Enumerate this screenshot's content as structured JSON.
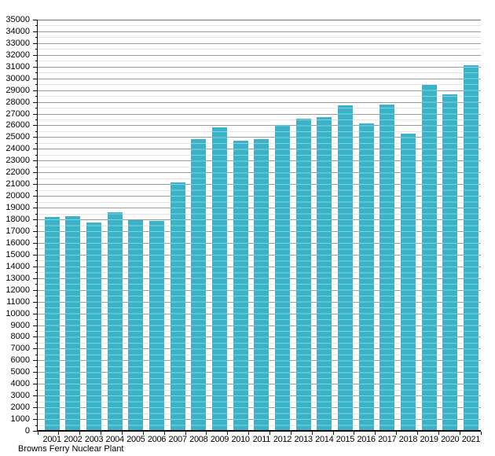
{
  "chart_data": {
    "type": "bar",
    "title": "",
    "footer": "Browns Ferry Nuclear Plant",
    "categories": [
      "2001",
      "2002",
      "2003",
      "2004",
      "2005",
      "2006",
      "2007",
      "2008",
      "2009",
      "2010",
      "2011",
      "2012",
      "2013",
      "2014",
      "2015",
      "2016",
      "2017",
      "2018",
      "2019",
      "2020",
      "2021"
    ],
    "values": [
      18200,
      18250,
      17750,
      18600,
      17950,
      17850,
      21150,
      24850,
      25800,
      24700,
      24800,
      26050,
      26600,
      26700,
      27700,
      26200,
      27800,
      25300,
      29450,
      28650,
      31100
    ],
    "ylim": [
      0,
      35000
    ],
    "y_major_step": 1000,
    "y_minor_step": 500,
    "grid": "horizontal, minor every 500 (light) and major every 1000 (gray), darker line at 35000",
    "legend": "none",
    "colors": {
      "bar": "#3ab3c9",
      "grid_major": "#9c9c9c",
      "grid_minor": "#e4e4e4",
      "grid_top": "#777777",
      "axis": "#0a0a0a",
      "text": "#000000",
      "background": "#ffffff"
    }
  }
}
